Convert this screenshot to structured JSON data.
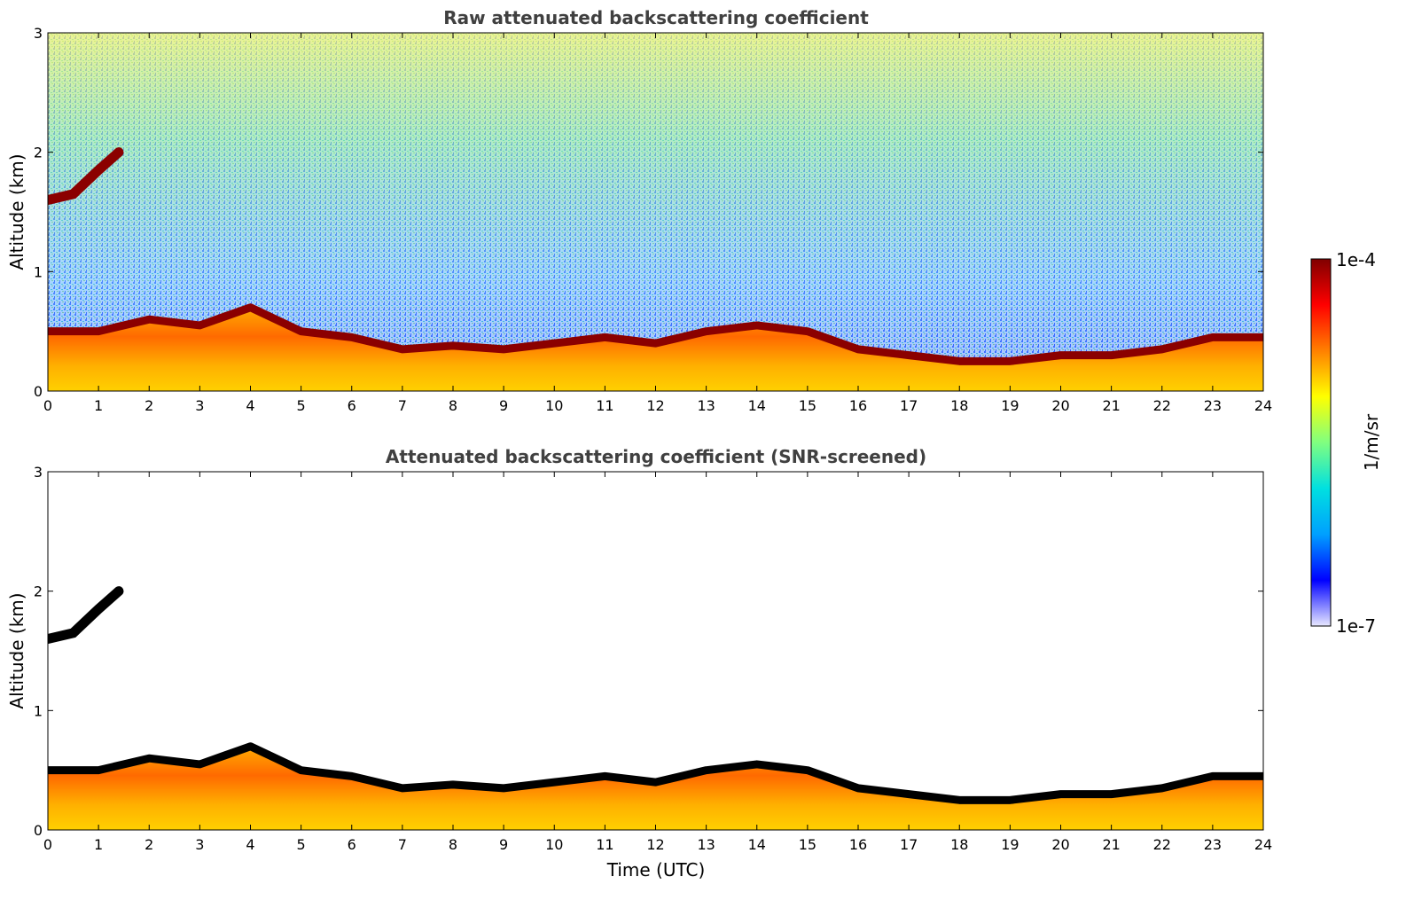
{
  "chart_data": [
    {
      "type": "heatmap",
      "title": "Raw attenuated backscattering coefficient",
      "xlabel": "",
      "ylabel": "Altitude (km)",
      "xlim": [
        0,
        24
      ],
      "ylim": [
        0,
        3
      ],
      "x_ticks": [
        0,
        1,
        2,
        3,
        4,
        5,
        6,
        7,
        8,
        9,
        10,
        11,
        12,
        13,
        14,
        15,
        16,
        17,
        18,
        19,
        20,
        21,
        22,
        23,
        24
      ],
      "y_ticks": [
        0,
        1,
        2,
        3
      ],
      "boundary_layer_top_km": [
        [
          0,
          0.5
        ],
        [
          1,
          0.5
        ],
        [
          2,
          0.6
        ],
        [
          3,
          0.55
        ],
        [
          4,
          0.7
        ],
        [
          5,
          0.5
        ],
        [
          6,
          0.45
        ],
        [
          7,
          0.35
        ],
        [
          8,
          0.38
        ],
        [
          9,
          0.35
        ],
        [
          10,
          0.4
        ],
        [
          11,
          0.45
        ],
        [
          12,
          0.4
        ],
        [
          13,
          0.5
        ],
        [
          14,
          0.55
        ],
        [
          15,
          0.5
        ],
        [
          16,
          0.35
        ],
        [
          17,
          0.3
        ],
        [
          18,
          0.25
        ],
        [
          19,
          0.25
        ],
        [
          20,
          0.3
        ],
        [
          21,
          0.3
        ],
        [
          22,
          0.35
        ],
        [
          23,
          0.45
        ],
        [
          24,
          0.45
        ]
      ],
      "elevated_layer_km": [
        [
          0,
          1.6
        ],
        [
          0.5,
          1.65
        ],
        [
          1,
          1.85
        ],
        [
          1.4,
          2.0
        ]
      ]
    },
    {
      "type": "heatmap",
      "title": "Attenuated backscattering coefficient (SNR-screened)",
      "xlabel": "Time (UTC)",
      "ylabel": "Altitude (km)",
      "xlim": [
        0,
        24
      ],
      "ylim": [
        0,
        3
      ],
      "x_ticks": [
        0,
        1,
        2,
        3,
        4,
        5,
        6,
        7,
        8,
        9,
        10,
        11,
        12,
        13,
        14,
        15,
        16,
        17,
        18,
        19,
        20,
        21,
        22,
        23,
        24
      ],
      "y_ticks": [
        0,
        1,
        2,
        3
      ],
      "boundary_layer_top_km": [
        [
          0,
          0.5
        ],
        [
          1,
          0.5
        ],
        [
          2,
          0.6
        ],
        [
          3,
          0.55
        ],
        [
          4,
          0.7
        ],
        [
          5,
          0.5
        ],
        [
          6,
          0.45
        ],
        [
          7,
          0.35
        ],
        [
          8,
          0.38
        ],
        [
          9,
          0.35
        ],
        [
          10,
          0.4
        ],
        [
          11,
          0.45
        ],
        [
          12,
          0.4
        ],
        [
          13,
          0.5
        ],
        [
          14,
          0.55
        ],
        [
          15,
          0.5
        ],
        [
          16,
          0.35
        ],
        [
          17,
          0.3
        ],
        [
          18,
          0.25
        ],
        [
          19,
          0.25
        ],
        [
          20,
          0.3
        ],
        [
          21,
          0.3
        ],
        [
          22,
          0.35
        ],
        [
          23,
          0.45
        ],
        [
          24,
          0.45
        ]
      ],
      "elevated_layer_km": [
        [
          0,
          1.6
        ],
        [
          0.5,
          1.65
        ],
        [
          1,
          1.85
        ],
        [
          1.4,
          2.0
        ]
      ]
    }
  ],
  "colorbar": {
    "label": "1/m/sr",
    "max_label": "1e-4",
    "min_label": "1e-7",
    "colormap": "jet",
    "colors": [
      "#e8e8ff",
      "#0000ff",
      "#00a0ff",
      "#00e0e0",
      "#80ff80",
      "#ffff00",
      "#ff8000",
      "#ff0000",
      "#800000"
    ]
  }
}
